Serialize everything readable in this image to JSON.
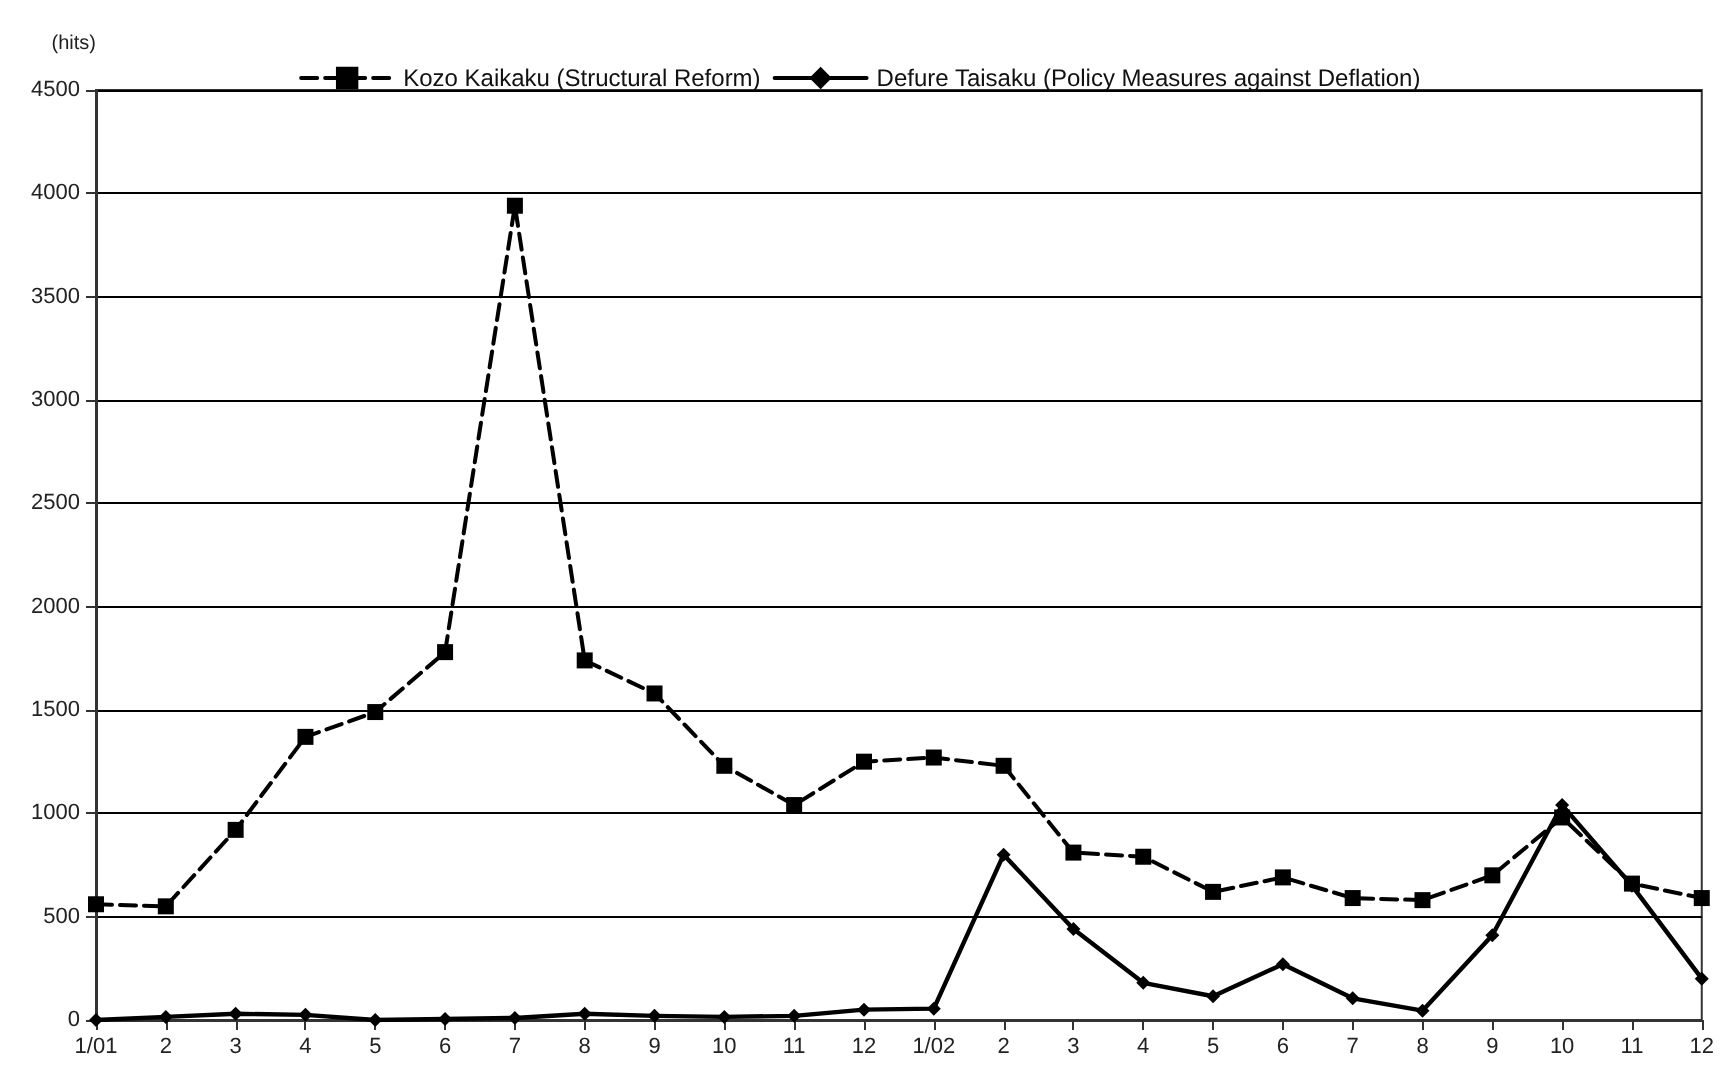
{
  "chart_data": {
    "type": "line",
    "ylabel": "(hits)",
    "categories": [
      "1/01",
      "2",
      "3",
      "4",
      "5",
      "6",
      "7",
      "8",
      "9",
      "10",
      "11",
      "12",
      "1/02",
      "2",
      "3",
      "4",
      "5",
      "6",
      "7",
      "8",
      "9",
      "10",
      "11",
      "12"
    ],
    "series": [
      {
        "name": "Kozo Kaikaku (Structural Reform)",
        "color": "#000000",
        "line_style": "dashed",
        "marker": "square",
        "values": [
          560,
          550,
          920,
          1370,
          1490,
          1780,
          3940,
          1740,
          1580,
          1230,
          1040,
          1250,
          1270,
          1230,
          810,
          790,
          620,
          690,
          590,
          580,
          700,
          980,
          660,
          590
        ]
      },
      {
        "name": "Defure Taisaku (Policy Measures against Deflation)",
        "color": "#000000",
        "line_style": "solid",
        "marker": "diamond",
        "values": [
          0,
          15,
          30,
          25,
          0,
          5,
          10,
          30,
          20,
          15,
          20,
          50,
          55,
          800,
          440,
          180,
          115,
          270,
          105,
          45,
          410,
          1040,
          650,
          200
        ]
      }
    ],
    "ylim": [
      0,
      4500
    ],
    "yticks": [
      0,
      500,
      1000,
      1500,
      2000,
      2500,
      3000,
      3500,
      4000,
      4500
    ],
    "grid": "y",
    "legend": "top"
  }
}
